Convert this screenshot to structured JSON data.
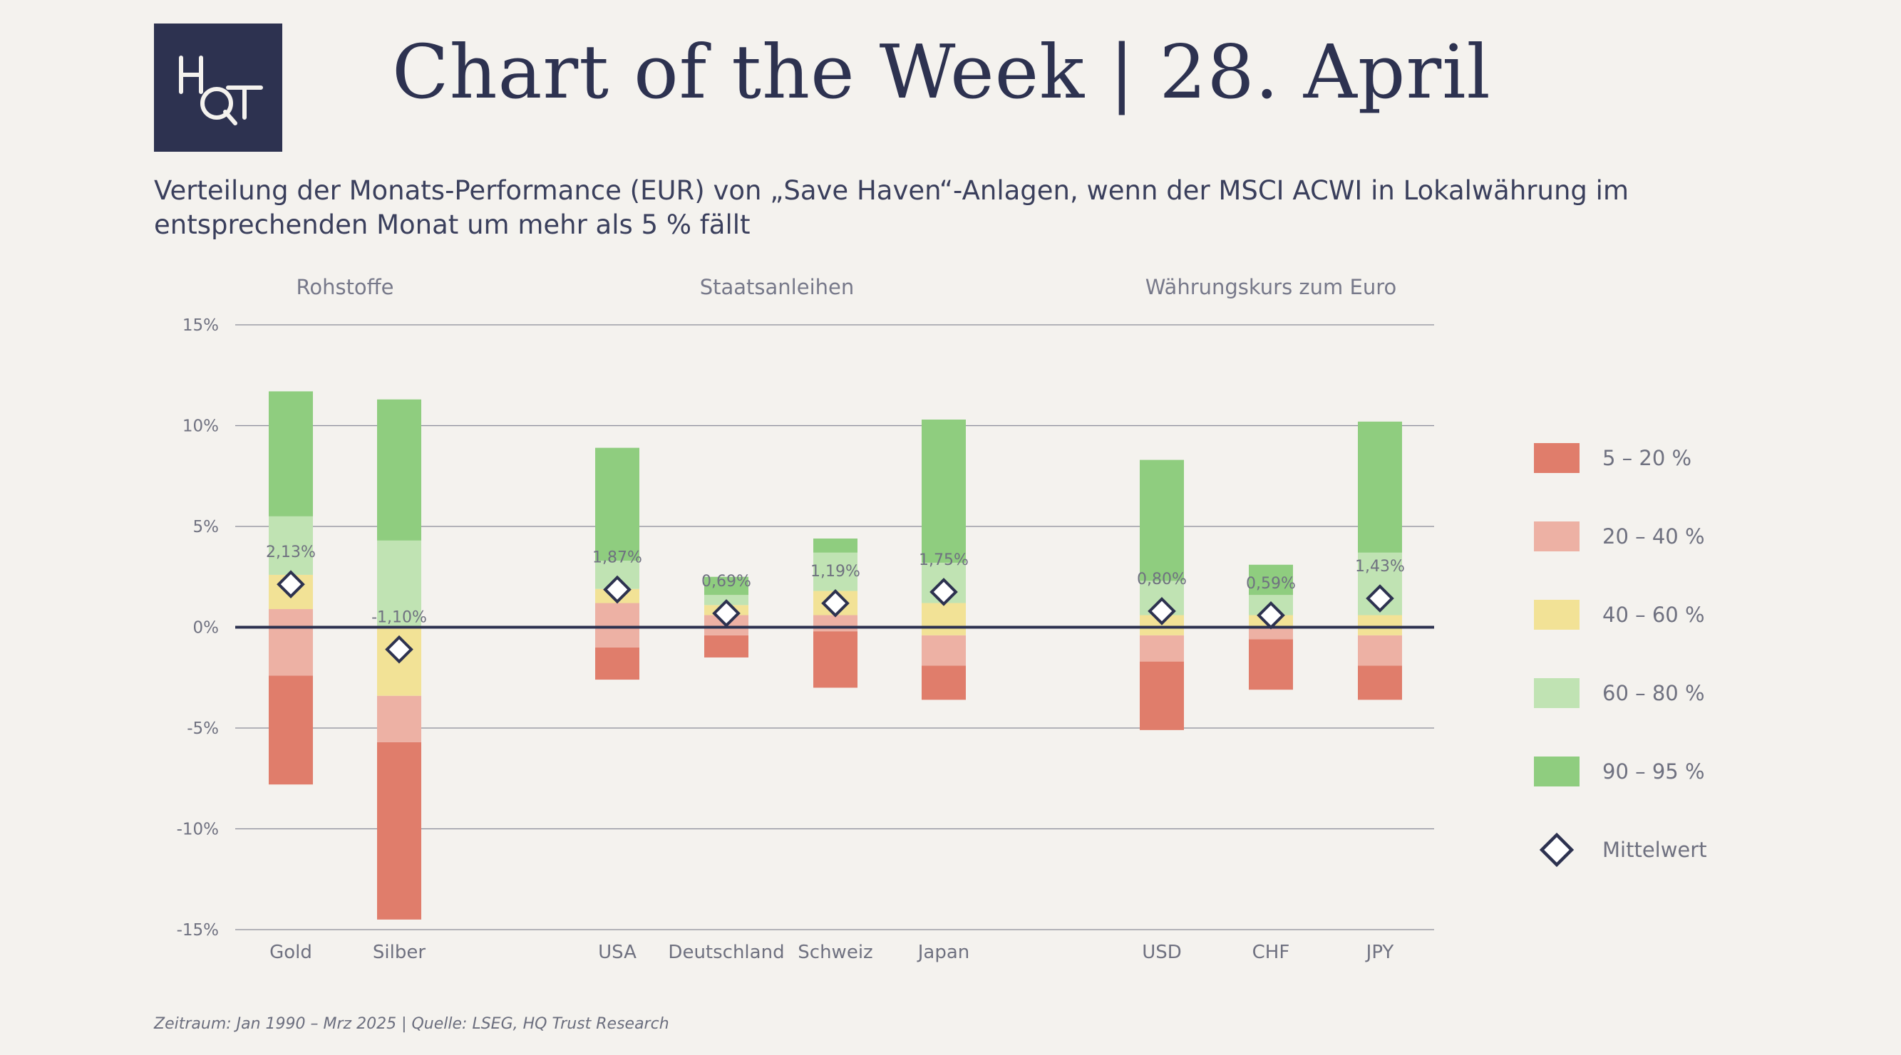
{
  "logo": {
    "text": "HQT"
  },
  "header": {
    "title": "Chart of the Week | 28. April",
    "subtitle": "Verteilung der Monats-Performance (EUR) von „Save Haven“-Anlagen, wenn der MSCI ACWI in Lokalwährung im entsprechenden Monat um mehr als 5 % fällt"
  },
  "footer": {
    "source": "Zeitraum: Jan 1990 – Mrz 2025 | Quelle: LSEG, HQ Trust Research"
  },
  "chart_data": {
    "type": "bar",
    "subtype": "floating-stacked-percentile-bands",
    "ylim": [
      -15,
      15
    ],
    "yticks": [
      15,
      10,
      5,
      0,
      -5,
      -10,
      -15
    ],
    "ytick_labels": [
      "15%",
      "10%",
      "5%",
      "0%",
      "-5%",
      "-10%",
      "-15%"
    ],
    "grid": true,
    "legend_position": "right",
    "groups": [
      {
        "label": "Rohstoffe",
        "categories": [
          "Gold",
          "Silber"
        ]
      },
      {
        "label": "Staatsanleihen",
        "categories": [
          "USA",
          "Deutschland",
          "Schweiz",
          "Japan"
        ]
      },
      {
        "label": "Währungskurs zum Euro",
        "categories": [
          "USD",
          "CHF",
          "JPY"
        ]
      }
    ],
    "band_series": [
      {
        "name": "5 – 20 %",
        "color": "#e07d6b"
      },
      {
        "name": "20 – 40 %",
        "color": "#edb1a4"
      },
      {
        "name": "40 – 60 %",
        "color": "#f2e296"
      },
      {
        "name": "60 – 80 %",
        "color": "#c0e3b3"
      },
      {
        "name": "90 – 95 %",
        "color": "#8fcd7f"
      }
    ],
    "mean_series": {
      "name": "Mittelwert",
      "marker": "diamond"
    },
    "bars": [
      {
        "category": "Gold",
        "bounds": [
          -7.8,
          -2.4,
          0.9,
          2.6,
          5.5,
          11.7
        ],
        "mean": 2.13,
        "mean_label": "2,13%"
      },
      {
        "category": "Silber",
        "bounds": [
          -14.5,
          -5.7,
          -3.4,
          0.0,
          4.3,
          11.3
        ],
        "mean": -1.1,
        "mean_label": "-1,10%"
      },
      {
        "category": "USA",
        "bounds": [
          -2.6,
          -1.0,
          1.2,
          1.9,
          3.3,
          8.9
        ],
        "mean": 1.87,
        "mean_label": "1,87%"
      },
      {
        "category": "Deutschland",
        "bounds": [
          -1.5,
          -0.4,
          0.6,
          1.1,
          1.6,
          2.5
        ],
        "mean": 0.69,
        "mean_label": "0,69%"
      },
      {
        "category": "Schweiz",
        "bounds": [
          -3.0,
          -0.2,
          0.6,
          1.8,
          3.7,
          4.4
        ],
        "mean": 1.19,
        "mean_label": "1,19%"
      },
      {
        "category": "Japan",
        "bounds": [
          -3.6,
          -1.9,
          -0.4,
          1.2,
          3.2,
          10.3
        ],
        "mean": 1.75,
        "mean_label": "1,75%"
      },
      {
        "category": "USD",
        "bounds": [
          -5.1,
          -1.7,
          -0.4,
          0.6,
          2.3,
          8.3
        ],
        "mean": 0.8,
        "mean_label": "0,80%"
      },
      {
        "category": "CHF",
        "bounds": [
          -3.1,
          -0.6,
          0.0,
          0.6,
          1.6,
          3.1
        ],
        "mean": 0.59,
        "mean_label": "0,59%"
      },
      {
        "category": "JPY",
        "bounds": [
          -3.6,
          -1.9,
          -0.4,
          0.6,
          3.7,
          10.2
        ],
        "mean": 1.43,
        "mean_label": "1,43%"
      }
    ]
  }
}
